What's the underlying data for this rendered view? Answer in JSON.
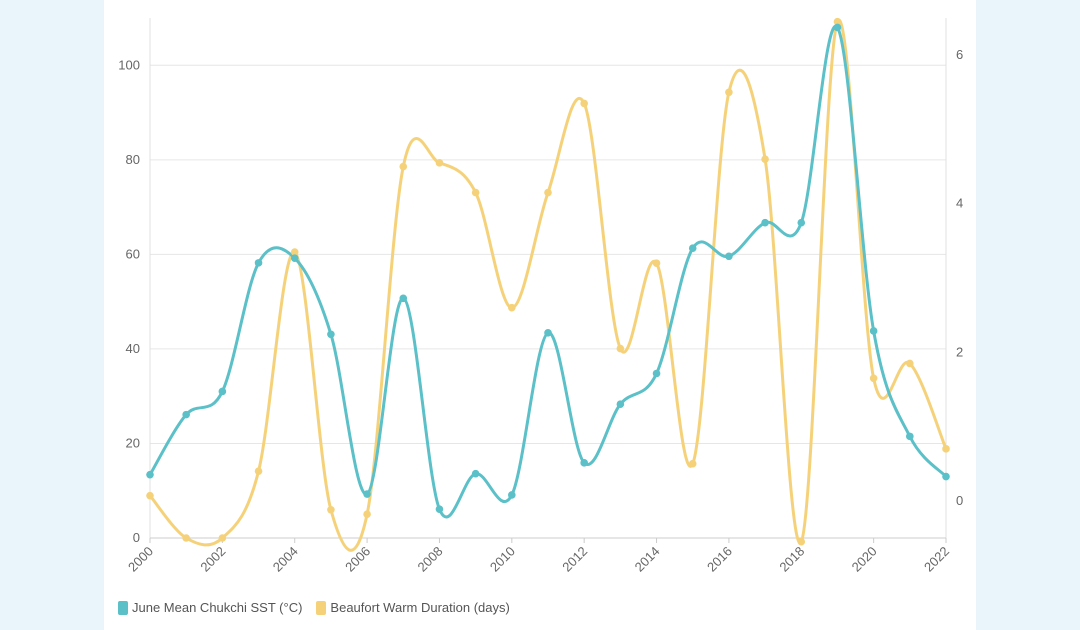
{
  "chart_data": {
    "type": "line",
    "x": [
      2000,
      2001,
      2002,
      2003,
      2004,
      2005,
      2006,
      2007,
      2008,
      2009,
      2010,
      2011,
      2012,
      2013,
      2014,
      2015,
      2016,
      2017,
      2018,
      2019,
      2020,
      2021,
      2022
    ],
    "x_ticks": [
      2000,
      2002,
      2004,
      2006,
      2008,
      2010,
      2012,
      2014,
      2016,
      2018,
      2020,
      2022
    ],
    "series": [
      {
        "name": "June Mean Chukchi SST (°C)",
        "axis": "left",
        "color": "#5bc0c8",
        "values": [
          13.4,
          26.1,
          31.0,
          58.2,
          59.2,
          43.1,
          9.3,
          50.7,
          6.1,
          13.6,
          9.1,
          43.4,
          15.9,
          28.3,
          34.8,
          61.3,
          59.6,
          66.7,
          66.7,
          108.0,
          43.8,
          21.5,
          13.0
        ]
      },
      {
        "name": "Beaufort Warm Duration (days)",
        "axis": "right",
        "color": "#f5d27a",
        "values": [
          0.07,
          -0.5,
          -0.5,
          0.4,
          3.35,
          -0.12,
          -0.18,
          4.5,
          4.55,
          4.15,
          2.6,
          4.15,
          5.35,
          2.05,
          3.2,
          0.5,
          5.5,
          4.6,
          -0.55,
          6.45,
          1.65,
          1.85,
          0.7
        ]
      }
    ],
    "y_left": {
      "lim": [
        0,
        110
      ],
      "ticks": [
        0,
        20,
        40,
        60,
        80,
        100
      ]
    },
    "y_right": {
      "lim": [
        -0.5,
        6.5
      ],
      "ticks": [
        0,
        2,
        4,
        6
      ]
    },
    "grid": true,
    "legend_position": "bottom-left"
  }
}
